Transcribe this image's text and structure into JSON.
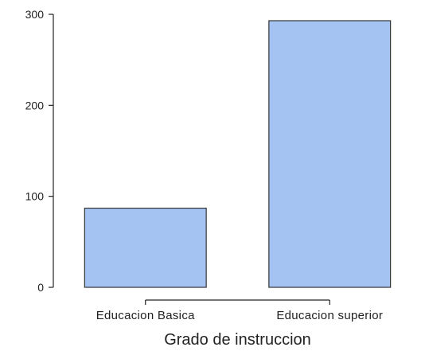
{
  "chart_data": {
    "type": "bar",
    "categories": [
      "Educacion Basica",
      "Educacion superior"
    ],
    "values": [
      87,
      293
    ],
    "title": "",
    "xlabel": "Grado de instruccion",
    "ylabel": "",
    "ylim": [
      0,
      300
    ],
    "yticks": [
      0,
      100,
      200,
      300
    ],
    "grid": false,
    "legend": "none",
    "bar_color": "#a4c3f2"
  }
}
